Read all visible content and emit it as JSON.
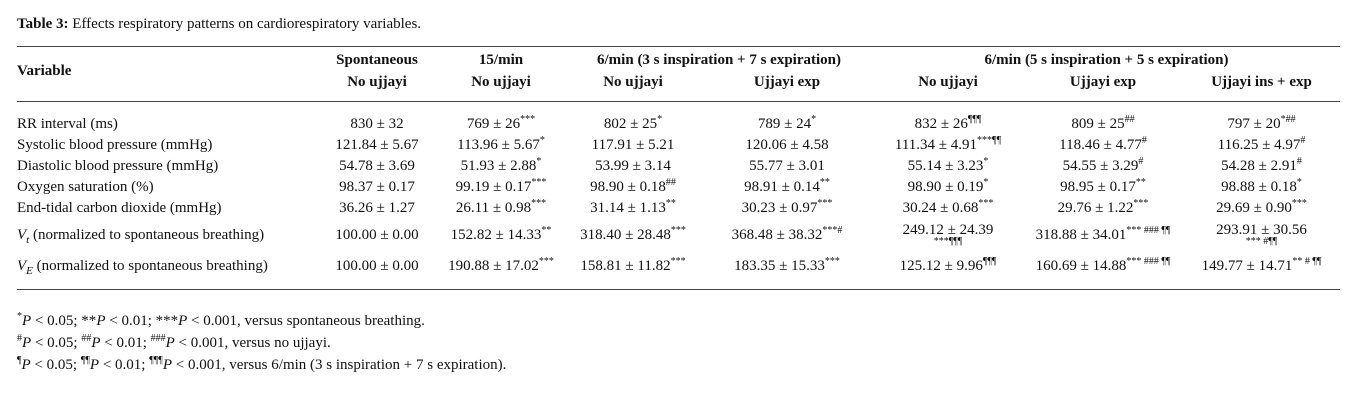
{
  "caption": {
    "label": "Table 3:",
    "text": " Effects respiratory patterns on cardiorespiratory variables."
  },
  "header": {
    "variable": "Variable",
    "groups": [
      {
        "label": "Spontaneous",
        "sub": [
          "No ujjayi"
        ]
      },
      {
        "label": "15/min",
        "sub": [
          "No ujjayi"
        ]
      },
      {
        "label": "6/min (3 s inspiration + 7 s expiration)",
        "sub": [
          "No ujjayi",
          "Ujjayi exp"
        ]
      },
      {
        "label": "6/min (5 s inspiration + 5 s expiration)",
        "sub": [
          "No ujjayi",
          "Ujjayi exp",
          "Ujjayi ins + exp"
        ]
      }
    ]
  },
  "rows": [
    {
      "variable": "RR interval (ms)",
      "cells": [
        {
          "v": "830 ± 32",
          "m": ""
        },
        {
          "v": "769 ± 26",
          "m": "***"
        },
        {
          "v": "802 ± 25",
          "m": "*"
        },
        {
          "v": "789 ± 24",
          "m": "*"
        },
        {
          "v": "832 ± 26",
          "m": "¶¶¶"
        },
        {
          "v": "809 ± 25",
          "m": "##"
        },
        {
          "v": "797 ± 20",
          "m": "*##"
        }
      ]
    },
    {
      "variable": "Systolic blood pressure (mmHg)",
      "cells": [
        {
          "v": "121.84 ± 5.67",
          "m": ""
        },
        {
          "v": "113.96 ± 5.67",
          "m": "*"
        },
        {
          "v": "117.91 ± 5.21",
          "m": ""
        },
        {
          "v": "120.06 ± 4.58",
          "m": ""
        },
        {
          "v": "111.34 ± 4.91",
          "m": "***¶¶"
        },
        {
          "v": "118.46 ± 4.77",
          "m": "#"
        },
        {
          "v": "116.25 ± 4.97",
          "m": "#"
        }
      ]
    },
    {
      "variable": "Diastolic blood pressure (mmHg)",
      "cells": [
        {
          "v": "54.78 ± 3.69",
          "m": ""
        },
        {
          "v": "51.93 ± 2.88",
          "m": "*"
        },
        {
          "v": "53.99 ± 3.14",
          "m": ""
        },
        {
          "v": "55.77 ± 3.01",
          "m": ""
        },
        {
          "v": "55.14 ± 3.23",
          "m": "*"
        },
        {
          "v": "54.55 ± 3.29",
          "m": "#"
        },
        {
          "v": "54.28 ± 2.91",
          "m": "#"
        }
      ]
    },
    {
      "variable": "Oxygen saturation (%)",
      "cells": [
        {
          "v": "98.37 ± 0.17",
          "m": ""
        },
        {
          "v": "99.19 ± 0.17",
          "m": "***"
        },
        {
          "v": "98.90 ± 0.18",
          "m": "##"
        },
        {
          "v": "98.91 ± 0.14",
          "m": "**"
        },
        {
          "v": "98.90 ± 0.19",
          "m": "*"
        },
        {
          "v": "98.95 ± 0.17",
          "m": "**"
        },
        {
          "v": "98.88 ± 0.18",
          "m": "*"
        }
      ]
    },
    {
      "variable": "End-tidal carbon dioxide (mmHg)",
      "cells": [
        {
          "v": "36.26 ± 1.27",
          "m": ""
        },
        {
          "v": "26.11 ± 0.98",
          "m": "***"
        },
        {
          "v": "31.14 ± 1.13",
          "m": "**"
        },
        {
          "v": "30.23 ± 0.97",
          "m": "***"
        },
        {
          "v": "30.24 ± 0.68",
          "m": "***"
        },
        {
          "v": "29.76 ± 1.22",
          "m": "***"
        },
        {
          "v": "29.69 ± 0.90",
          "m": "***"
        }
      ]
    },
    {
      "symbol": "V",
      "symbol_sub": "t",
      "variable": " (normalized to spontaneous breathing)",
      "cells": [
        {
          "v": "100.00 ± 0.00",
          "m": ""
        },
        {
          "v": "152.82 ± 14.33",
          "m": "**"
        },
        {
          "v": "318.40 ± 28.48",
          "m": "***"
        },
        {
          "v": "368.48 ± 38.32",
          "m": "***#"
        },
        {
          "v": "249.12 ± 24.39",
          "m": "***¶¶¶",
          "wrap": true
        },
        {
          "v": "318.88 ± 34.01",
          "m": "*** ### ¶¶"
        },
        {
          "v": "293.91 ± 30.56",
          "m": "*** #¶¶",
          "wrap": true
        }
      ]
    },
    {
      "symbol": "V",
      "symbol_sub": "E",
      "variable": " (normalized to spontaneous breathing)",
      "cells": [
        {
          "v": "100.00 ± 0.00",
          "m": ""
        },
        {
          "v": "190.88 ± 17.02",
          "m": "***"
        },
        {
          "v": "158.81 ± 11.82",
          "m": "***"
        },
        {
          "v": "183.35 ± 15.33",
          "m": "***"
        },
        {
          "v": "125.12 ± 9.96",
          "m": "¶¶¶"
        },
        {
          "v": "160.69 ± 14.88",
          "m": "*** ### ¶¶"
        },
        {
          "v": "149.77 ± 14.71",
          "m": "** # ¶¶"
        }
      ]
    }
  ],
  "footnotes": [
    {
      "parts": [
        {
          "m": "*"
        },
        {
          "p": "P"
        },
        {
          "t": " < 0.05; **"
        },
        {
          "p": "P"
        },
        {
          "t": " < 0.01; ***"
        },
        {
          "p": "P"
        },
        {
          "t": " < 0.001, versus spontaneous breathing."
        }
      ]
    },
    {
      "parts": [
        {
          "m": "#"
        },
        {
          "p": "P"
        },
        {
          "t": " < 0.05; "
        },
        {
          "m": "##"
        },
        {
          "p": "P"
        },
        {
          "t": " < 0.01; "
        },
        {
          "m": "###"
        },
        {
          "p": "P"
        },
        {
          "t": " < 0.001, versus no ujjayi."
        }
      ]
    },
    {
      "parts": [
        {
          "m": "¶"
        },
        {
          "p": "P"
        },
        {
          "t": " < 0.05; "
        },
        {
          "m": "¶¶"
        },
        {
          "p": "P"
        },
        {
          "t": " < 0.01; "
        },
        {
          "m": "¶¶¶"
        },
        {
          "p": "P"
        },
        {
          "t": " < 0.001, versus 6/min (3 s inspiration + 7 s expiration)."
        }
      ]
    }
  ]
}
